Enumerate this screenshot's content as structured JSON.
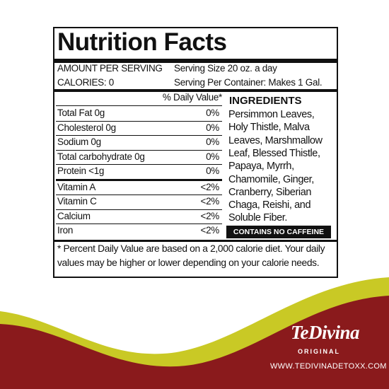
{
  "label": {
    "title": "Nutrition Facts",
    "amount_per_serving": "AMOUNT PER SERVING",
    "serving_size": "Serving Size 20 oz. a day",
    "calories": "CALORIES: 0",
    "servings_per_container": "Serving Per Container: Makes 1 Gal.",
    "daily_value_header": "% Daily Value*",
    "nutrients": [
      {
        "name": "Total Fat 0g",
        "dv": "0%"
      },
      {
        "name": "Cholesterol 0g",
        "dv": "0%"
      },
      {
        "name": "Sodium 0g",
        "dv": "0%"
      },
      {
        "name": "Total carbohydrate 0g",
        "dv": "0%"
      },
      {
        "name": "Protein <1g",
        "dv": "0%"
      }
    ],
    "vitamins": [
      {
        "name": "Vitamin A",
        "dv": "<2%"
      },
      {
        "name": "Vitamin C",
        "dv": "<2%"
      },
      {
        "name": "Calcium",
        "dv": "<2%"
      },
      {
        "name": "Iron",
        "dv": "<2%"
      }
    ],
    "ingredients_title": "INGREDIENTS",
    "ingredients_lines": [
      "Persimmon Leaves,",
      "Holy Thistle, Malva",
      "Leaves, Marshmallow",
      "Leaf, Blessed Thistle,",
      "Papaya, Myrrh,",
      "Chamomile, Ginger,",
      "Cranberry, Siberian",
      "Chaga, Reishi, and",
      "Soluble Fiber."
    ],
    "caffeine_note": "CONTAINS NO CAFFEINE",
    "footnote_lines": [
      "* Percent Daily Value are based on a 2,000 calorie diet. Your daily",
      "values may be higher or lower depending on your calorie needs."
    ]
  },
  "brand": {
    "name": "TeDivina",
    "subtitle": "ORIGINAL",
    "url": "WWW.TEDIVINADETOXX.COM"
  }
}
